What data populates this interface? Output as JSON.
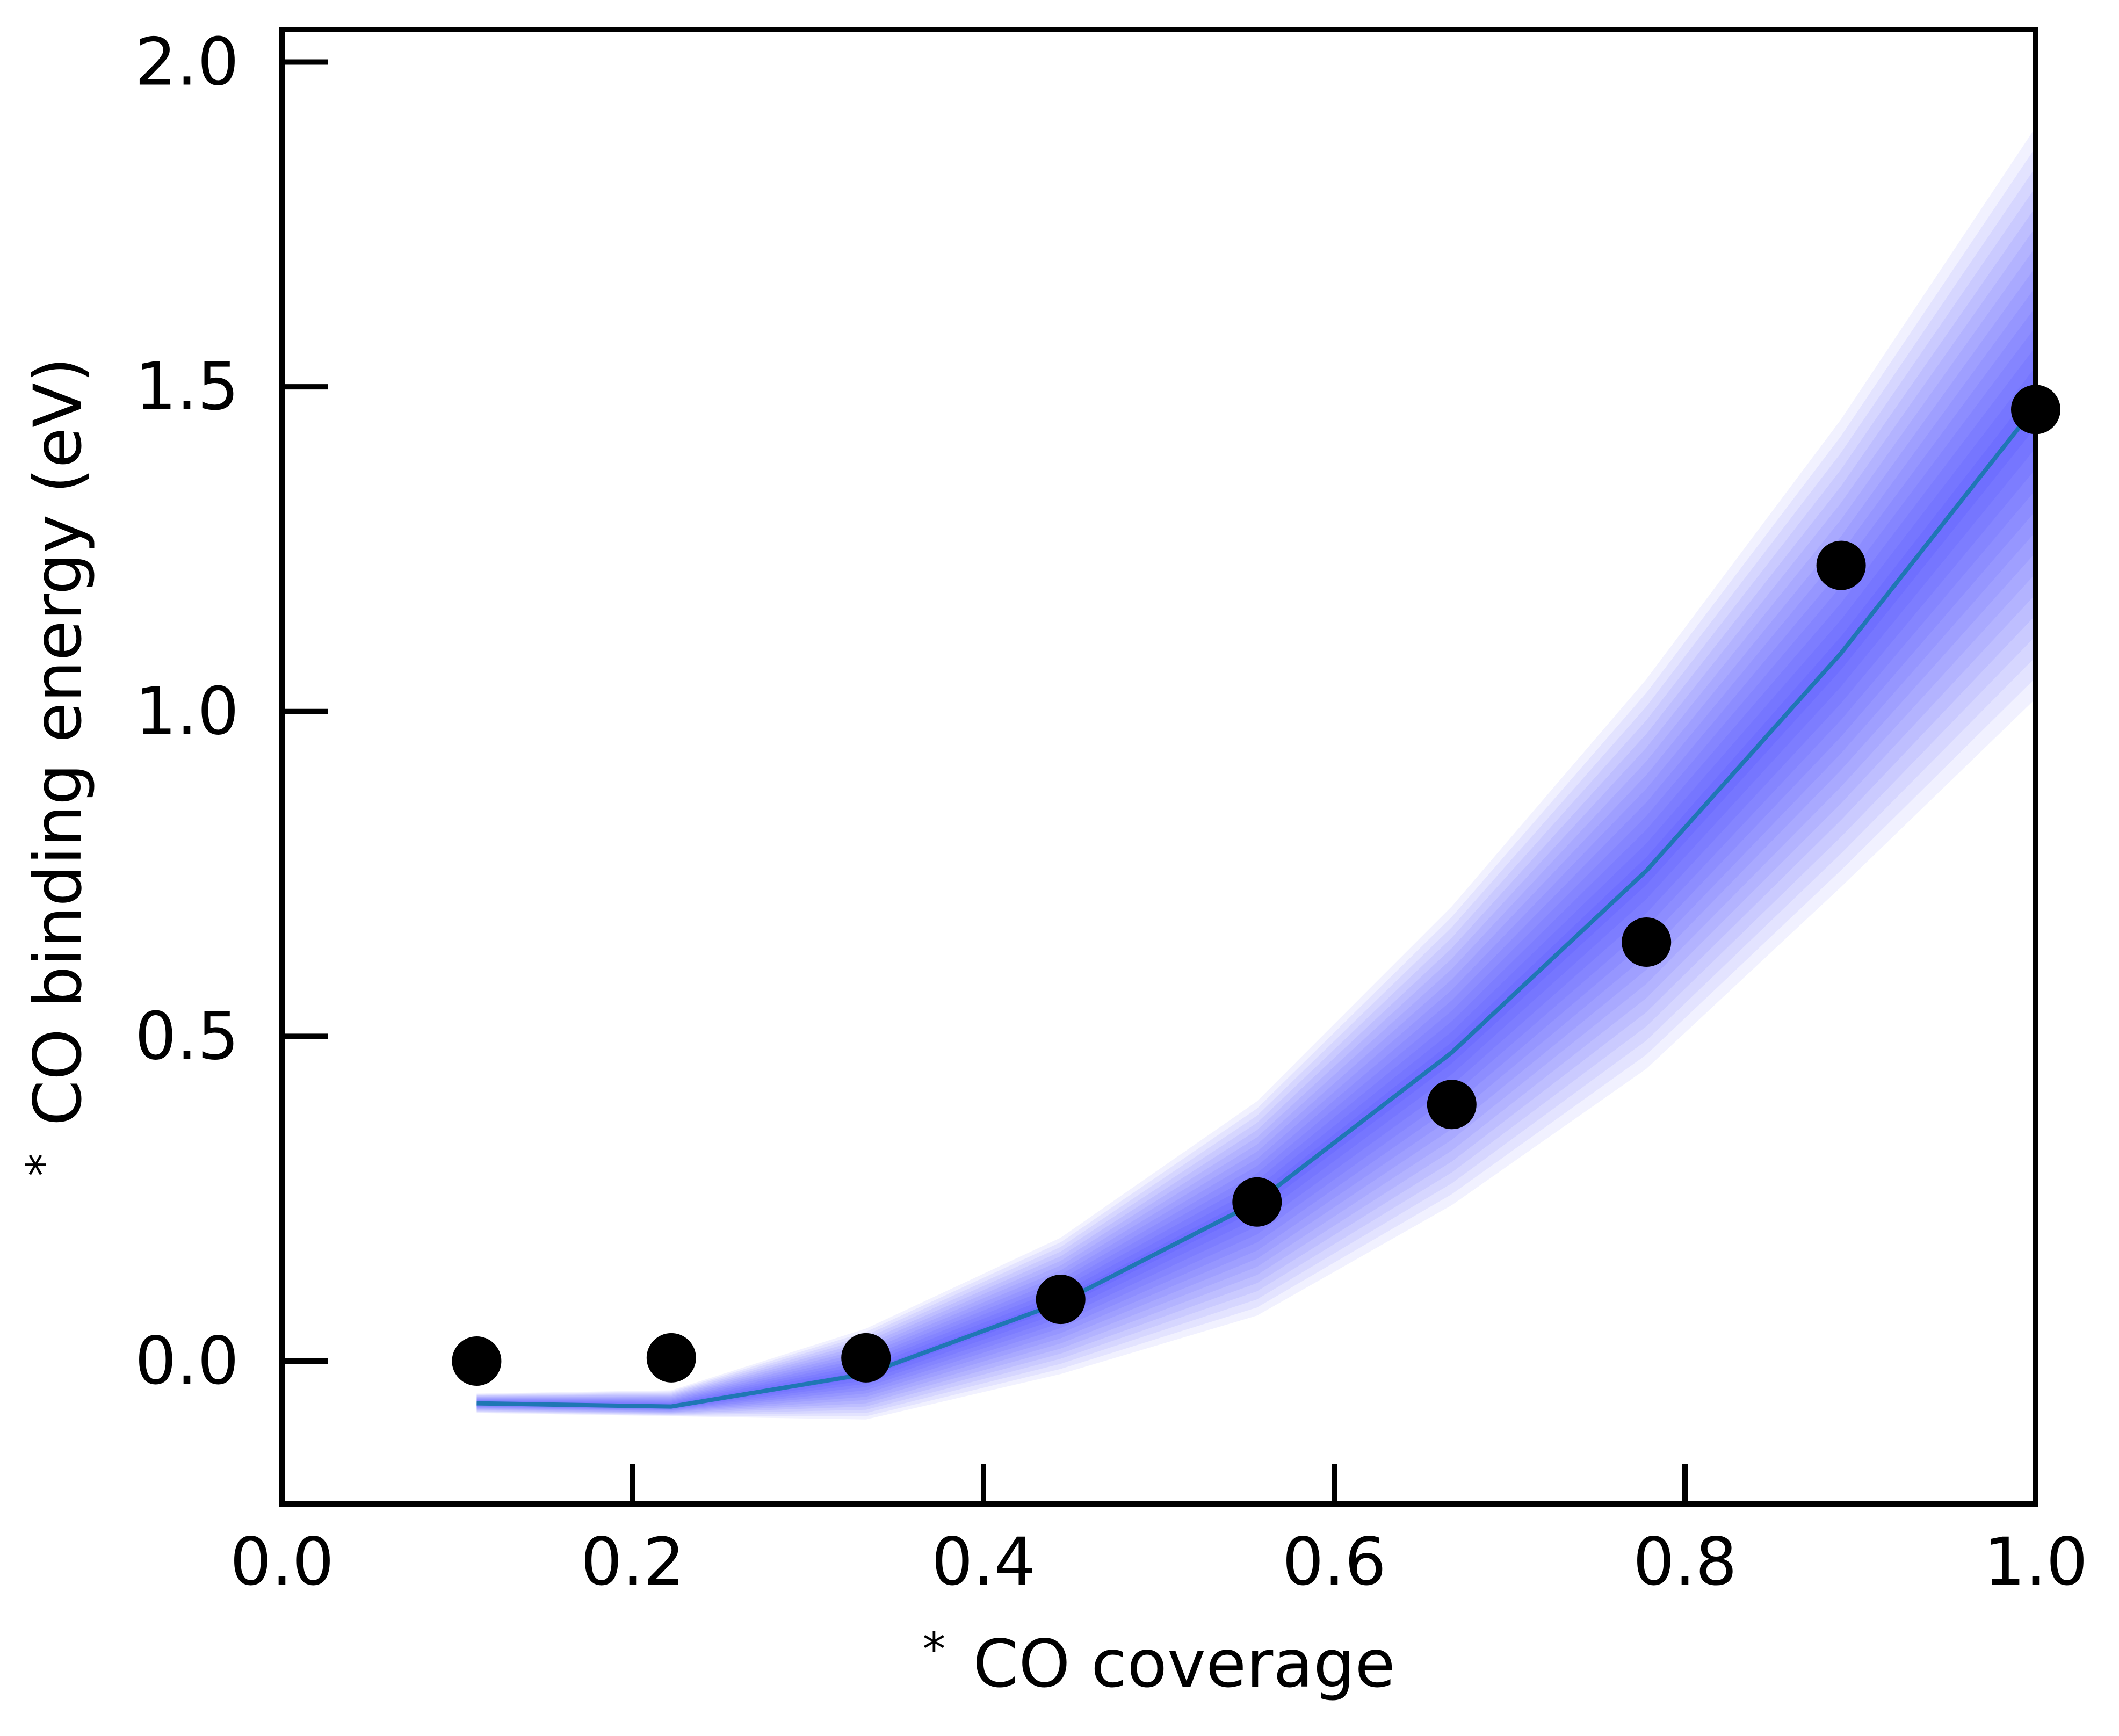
{
  "chart_data": {
    "type": "scatter",
    "title": "",
    "xlabel_prefix": "*",
    "xlabel": "CO coverage",
    "ylabel_prefix": "*",
    "ylabel": "CO binding energy (eV)",
    "xlim": [
      0.0,
      1.0
    ],
    "ylim": [
      -0.22,
      2.05
    ],
    "xticks": [
      0.0,
      0.2,
      0.4,
      0.6,
      0.8,
      1.0
    ],
    "xtick_labels": [
      "0.0",
      "0.2",
      "0.4",
      "0.6",
      "0.8",
      "1.0"
    ],
    "yticks": [
      0.0,
      0.5,
      1.0,
      1.5,
      2.0
    ],
    "ytick_labels": [
      "0.0",
      "0.5",
      "1.0",
      "1.5",
      "2.0"
    ],
    "grid": false,
    "legend": "none",
    "series": [
      {
        "kind": "points",
        "color": "#000000",
        "x": [
          0.111,
          0.222,
          0.333,
          0.444,
          0.556,
          0.667,
          0.778,
          0.889,
          1.0
        ],
        "y": [
          0.0,
          0.005,
          0.005,
          0.095,
          0.245,
          0.395,
          0.645,
          1.225,
          1.465
        ]
      },
      {
        "kind": "line",
        "color": "#1f77b4",
        "x": [
          0.111,
          0.222,
          0.333,
          0.444,
          0.556,
          0.667,
          0.778,
          0.889,
          1.0
        ],
        "y": [
          -0.065,
          -0.07,
          -0.02,
          0.09,
          0.245,
          0.475,
          0.755,
          1.09,
          1.47
        ]
      },
      {
        "kind": "band",
        "color": "#0000ff",
        "x": [
          0.111,
          0.222,
          0.333,
          0.444,
          0.556,
          0.667,
          0.778,
          0.889,
          1.0
        ],
        "lower": [
          -0.08,
          -0.085,
          -0.09,
          -0.02,
          0.07,
          0.24,
          0.45,
          0.73,
          1.02
        ],
        "upper": [
          -0.05,
          -0.045,
          0.05,
          0.19,
          0.4,
          0.7,
          1.05,
          1.45,
          1.9
        ]
      }
    ]
  }
}
